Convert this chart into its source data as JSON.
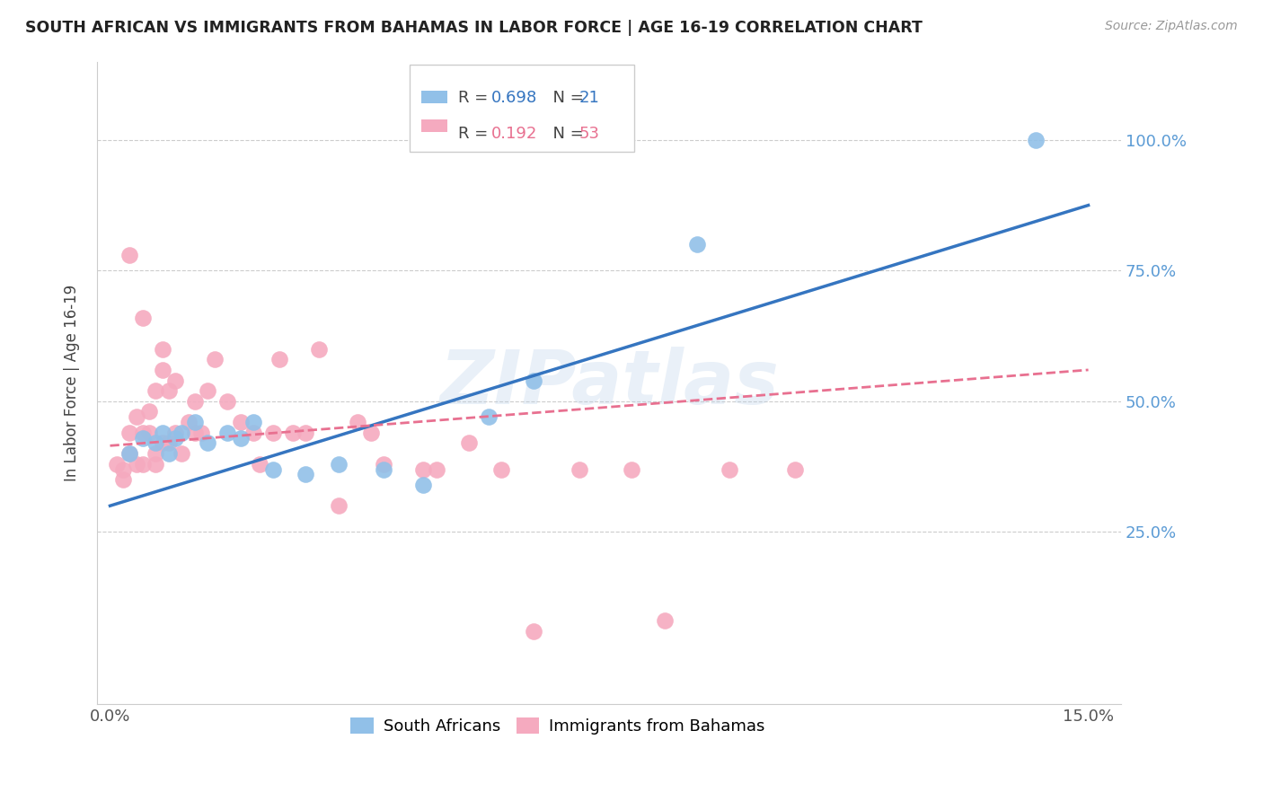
{
  "title": "SOUTH AFRICAN VS IMMIGRANTS FROM BAHAMAS IN LABOR FORCE | AGE 16-19 CORRELATION CHART",
  "source_text": "Source: ZipAtlas.com",
  "ylabel": "In Labor Force | Age 16-19",
  "xlim": [
    0.0,
    0.155
  ],
  "ylim": [
    -0.08,
    1.15
  ],
  "xtick_vals": [
    0.0,
    0.15
  ],
  "xtick_labels": [
    "0.0%",
    "15.0%"
  ],
  "ytick_vals": [
    0.25,
    0.5,
    0.75,
    1.0
  ],
  "ytick_labels": [
    "25.0%",
    "50.0%",
    "75.0%",
    "100.0%"
  ],
  "right_ytick_color": "#5b9bd5",
  "blue_R": 0.698,
  "blue_N": 21,
  "pink_R": 0.192,
  "pink_N": 53,
  "blue_color": "#91C0E8",
  "pink_color": "#F5AABF",
  "blue_line_color": "#3575C0",
  "pink_line_color": "#E87090",
  "watermark": "ZIPatlas",
  "blue_scatter_x": [
    0.003,
    0.005,
    0.007,
    0.008,
    0.009,
    0.01,
    0.011,
    0.013,
    0.015,
    0.018,
    0.02,
    0.022,
    0.025,
    0.03,
    0.035,
    0.042,
    0.048,
    0.058,
    0.065,
    0.09,
    0.142
  ],
  "blue_scatter_y": [
    0.4,
    0.43,
    0.42,
    0.44,
    0.4,
    0.43,
    0.44,
    0.46,
    0.42,
    0.44,
    0.43,
    0.46,
    0.37,
    0.36,
    0.38,
    0.37,
    0.34,
    0.47,
    0.54,
    0.8,
    1.0
  ],
  "pink_scatter_x": [
    0.001,
    0.002,
    0.002,
    0.003,
    0.003,
    0.003,
    0.004,
    0.004,
    0.005,
    0.005,
    0.005,
    0.006,
    0.006,
    0.007,
    0.007,
    0.007,
    0.008,
    0.008,
    0.008,
    0.009,
    0.009,
    0.01,
    0.01,
    0.011,
    0.012,
    0.013,
    0.013,
    0.014,
    0.015,
    0.016,
    0.018,
    0.02,
    0.022,
    0.023,
    0.025,
    0.026,
    0.028,
    0.03,
    0.032,
    0.035,
    0.038,
    0.04,
    0.042,
    0.048,
    0.05,
    0.055,
    0.06,
    0.065,
    0.072,
    0.08,
    0.085,
    0.095,
    0.105
  ],
  "pink_scatter_y": [
    0.38,
    0.35,
    0.37,
    0.44,
    0.4,
    0.78,
    0.47,
    0.38,
    0.66,
    0.38,
    0.44,
    0.44,
    0.48,
    0.38,
    0.4,
    0.52,
    0.56,
    0.6,
    0.42,
    0.52,
    0.42,
    0.44,
    0.54,
    0.4,
    0.46,
    0.44,
    0.5,
    0.44,
    0.52,
    0.58,
    0.5,
    0.46,
    0.44,
    0.38,
    0.44,
    0.58,
    0.44,
    0.44,
    0.6,
    0.3,
    0.46,
    0.44,
    0.38,
    0.37,
    0.37,
    0.42,
    0.37,
    0.06,
    0.37,
    0.37,
    0.08,
    0.37,
    0.37
  ],
  "blue_line_x0": 0.0,
  "blue_line_y0": 0.3,
  "blue_line_x1": 0.15,
  "blue_line_y1": 0.875,
  "pink_line_x0": 0.0,
  "pink_line_y0": 0.415,
  "pink_line_x1": 0.15,
  "pink_line_y1": 0.56
}
